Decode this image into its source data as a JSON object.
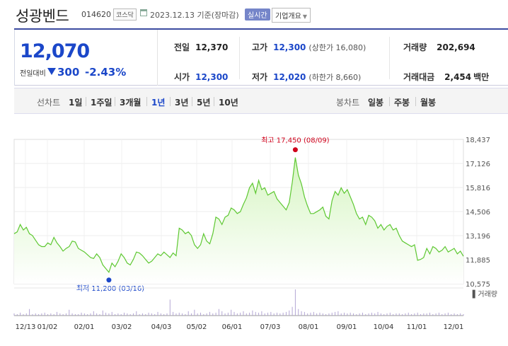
{
  "header": {
    "name": "성광벤드",
    "code": "014620",
    "market": "코스닥",
    "date": "2023.12.13",
    "basis": "기준(장마감)",
    "realtime": "실시간",
    "corp_info": "기업개요"
  },
  "summary": {
    "price": "12,070",
    "change_label": "전일대비",
    "change": "300",
    "change_pct": "-2.43%",
    "prev_label": "전일",
    "prev": "12,370",
    "open_label": "시가",
    "open": "12,300",
    "high_label": "고가",
    "high": "12,300",
    "upper_limit": "(상한가 16,080)",
    "low_label": "저가",
    "low": "12,020",
    "lower_limit": "(하한가 8,660)",
    "volume_label": "거래량",
    "volume": "202,694",
    "amount_label": "거래대금",
    "amount": "2,454",
    "amount_unit": "백만"
  },
  "toolbar": {
    "line_label": "선차트",
    "periods": [
      "1일",
      "1주일",
      "3개월",
      "1년",
      "3년",
      "5년",
      "10년"
    ],
    "active_period": "1년",
    "candle_label": "봉차트",
    "candles": [
      "일봉",
      "주봉",
      "월봉"
    ]
  },
  "colors": {
    "accent": "#1b47c9",
    "up": "#d0021b",
    "line": "#5ec832",
    "area_top": "#d6f5c2",
    "area_bottom": "#ffffff",
    "volume": "#b3a6d4"
  },
  "chart_data": {
    "type": "area",
    "y_ticks": [
      "18,437",
      "17,126",
      "15,816",
      "14,506",
      "13,196",
      "11,885",
      "10,575"
    ],
    "ylim": [
      10575,
      18437
    ],
    "x_ticks": [
      "12/13",
      "01/02",
      "02/01",
      "03/02",
      "04/03",
      "05/02",
      "06/01",
      "07/03",
      "08/01",
      "09/01",
      "10/04",
      "11/01",
      "12/01"
    ],
    "high_annotation": "최고 17,450 (08/09)",
    "low_annotation": "최저 11,200 (03/16)",
    "volume_label": "거래량",
    "series": [
      {
        "values": [
          13300,
          13400,
          13800,
          13500,
          13650,
          13300,
          13200,
          12950,
          12700,
          12600,
          12600,
          12800,
          12700,
          13100,
          12800,
          12600,
          12350,
          12500,
          12600,
          12900,
          12850,
          12500,
          12400,
          12300,
          12150,
          12000,
          11950,
          12200,
          12000,
          11600,
          11400,
          11200,
          11700,
          11500,
          11800,
          12200,
          12000,
          11700,
          11600,
          11900,
          12300,
          12250,
          12100,
          11900,
          11700,
          11800,
          12000,
          12200,
          12100,
          12300,
          12150,
          12000,
          12250,
          12100,
          13600,
          13500,
          13300,
          13400,
          13200,
          12700,
          12500,
          12700,
          13300,
          12900,
          12750,
          13300,
          14200,
          14100,
          13800,
          14200,
          14300,
          14700,
          14600,
          14400,
          14500,
          14900,
          15250,
          15800,
          16050,
          15500,
          16200,
          15700,
          15800,
          15400,
          15500,
          15600,
          15200,
          15000,
          14800,
          14600,
          15000,
          16100,
          17450,
          16500,
          16000,
          15300,
          14800,
          14400,
          14400,
          14500,
          14600,
          14750,
          14250,
          14100,
          15100,
          15600,
          15400,
          15800,
          15500,
          15700,
          15300,
          14900,
          14400,
          14100,
          14200,
          13800,
          14300,
          14200,
          14000,
          13600,
          13800,
          13500,
          13700,
          13800,
          13500,
          13600,
          13200,
          12900,
          12800,
          12700,
          12600,
          12700,
          11850,
          11900,
          12000,
          12500,
          12200,
          12600,
          12500,
          12300,
          12400,
          12600,
          12300,
          12400,
          12500,
          12200,
          12350,
          12070
        ]
      }
    ],
    "grid": true
  }
}
